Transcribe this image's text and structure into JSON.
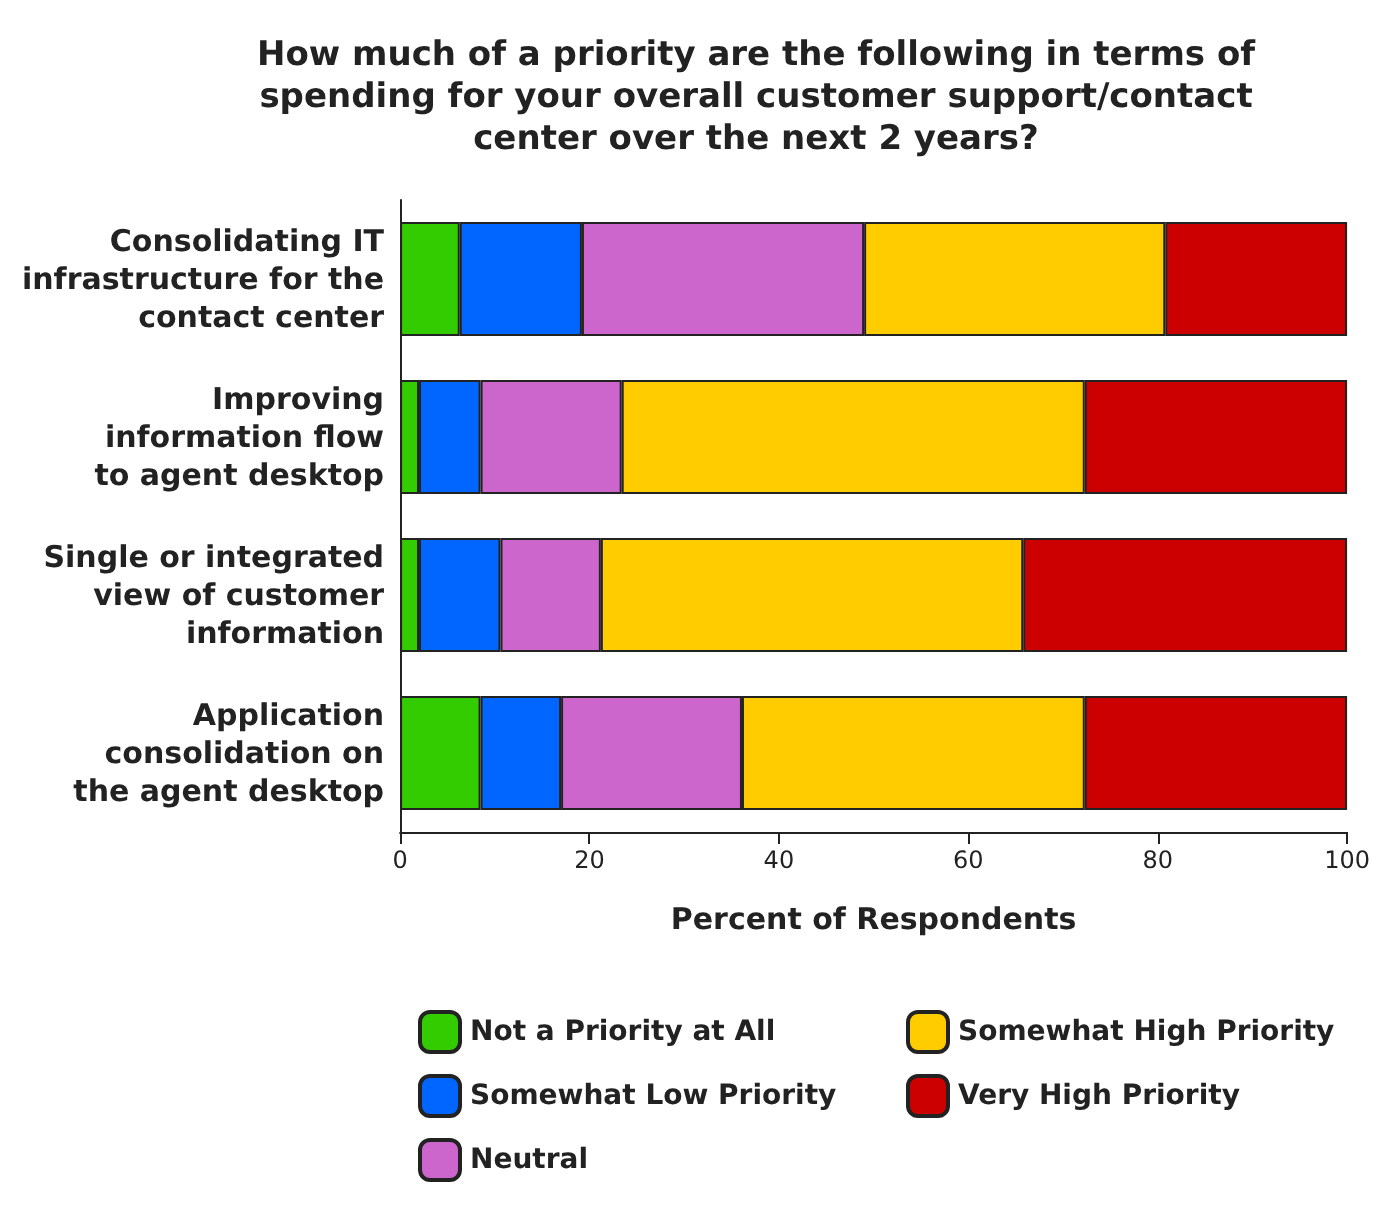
{
  "chart_data": {
    "type": "bar",
    "orientation": "horizontal",
    "stacked": true,
    "title": "How much of a priority are the following in terms of\nspending for your overall customer support/contact\ncenter over the next 2 years?",
    "xlabel": "Percent of Respondents",
    "categories": [
      "Consolidating IT\ninfrastructure for the\ncontact center",
      "Improving\ninformation flow\nto agent desktop",
      "Single or integrated\nview of customer\ninformation",
      "Application\nconsolidation on\nthe agent desktop"
    ],
    "series": [
      {
        "name": "Not a Priority at All",
        "color": "#33cc00",
        "values": [
          6.3,
          2.0,
          2.0,
          8.5
        ]
      },
      {
        "name": "Somewhat Low Priority",
        "color": "#0066ff",
        "values": [
          12.9,
          6.5,
          8.6,
          8.5
        ]
      },
      {
        "name": "Neutral",
        "color": "#cc66cc",
        "values": [
          29.8,
          14.9,
          10.6,
          19.1
        ]
      },
      {
        "name": "Somewhat High Priority",
        "color": "#ffcc00",
        "values": [
          31.8,
          48.9,
          44.6,
          36.2
        ]
      },
      {
        "name": "Very High Priority",
        "color": "#cc0000",
        "values": [
          19.2,
          27.7,
          34.2,
          27.7
        ]
      }
    ],
    "xlim": [
      0,
      100
    ],
    "xticks": [
      0,
      20,
      40,
      60,
      80,
      100
    ],
    "grid": false,
    "legend": "bottom"
  }
}
